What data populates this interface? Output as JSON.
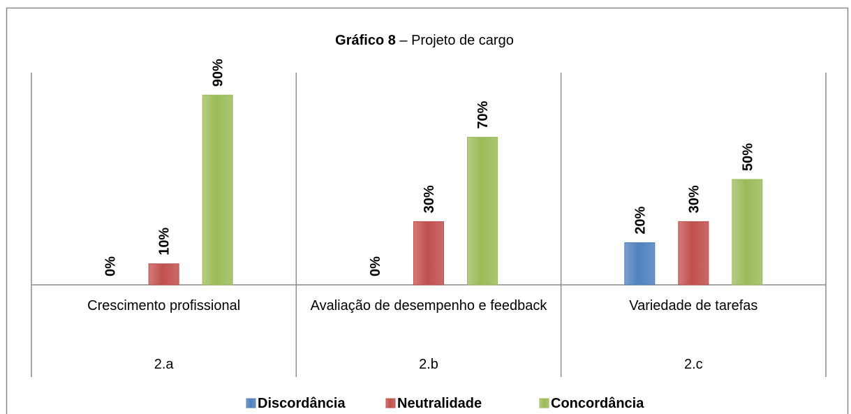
{
  "chart_data": {
    "type": "bar",
    "title": {
      "bold": "Gráfico 8",
      "rest": " – Projeto de cargo"
    },
    "categories": [
      "Crescimento profissional",
      "Avaliação de desempenho e feedback",
      "Variedade de tarefas"
    ],
    "groups": [
      "2.a",
      "2.b",
      "2.c"
    ],
    "ylim": [
      0,
      100
    ],
    "legend": "bottom",
    "series": [
      {
        "name": "Discordância",
        "color": "#4f81bd",
        "values": [
          0,
          0,
          20
        ],
        "value_labels": [
          "0%",
          "0%",
          "20%"
        ]
      },
      {
        "name": "Neutralidade",
        "color": "#c0504d",
        "values": [
          10,
          30,
          30
        ],
        "value_labels": [
          "10%",
          "30%",
          "30%"
        ]
      },
      {
        "name": "Concordância",
        "color": "#9bbb59",
        "values": [
          90,
          70,
          50
        ],
        "value_labels": [
          "90%",
          "70%",
          "50%"
        ]
      }
    ]
  }
}
